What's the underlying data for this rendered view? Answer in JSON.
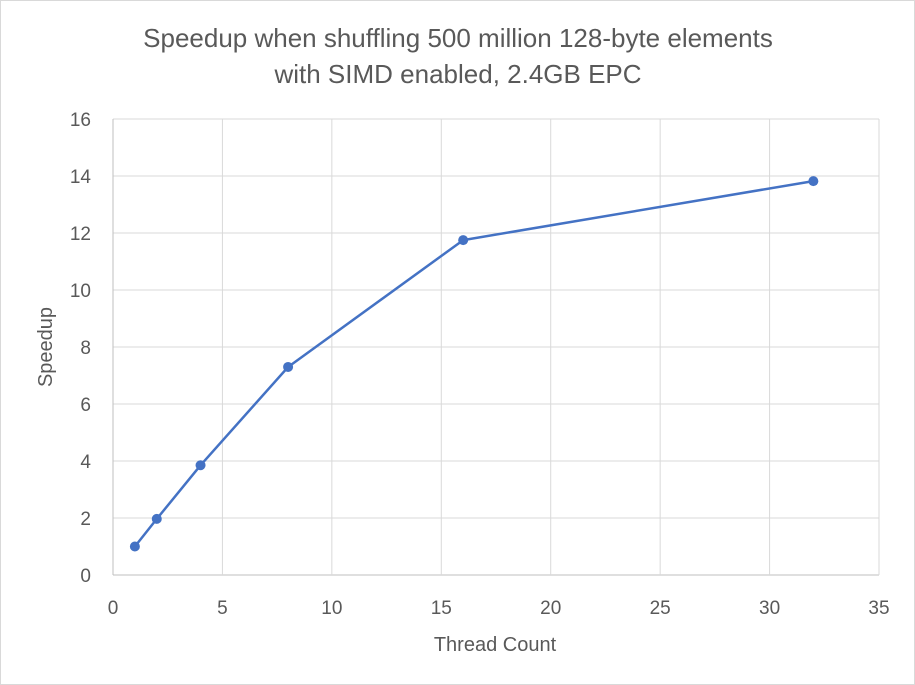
{
  "chart_data": {
    "type": "scatter",
    "title": [
      "Speedup when shuffling 500 million 128-byte elements",
      "with SIMD enabled, 2.4GB EPC"
    ],
    "xlabel": "Thread Count",
    "ylabel": "Speedup",
    "xlim": [
      0,
      35
    ],
    "ylim": [
      0,
      16
    ],
    "xticks": [
      0,
      5,
      10,
      15,
      20,
      25,
      30,
      35
    ],
    "yticks": [
      0,
      2,
      4,
      6,
      8,
      10,
      12,
      14,
      16
    ],
    "grid": true,
    "legend": "none",
    "series": [
      {
        "x": [
          1,
          2,
          4,
          8,
          16,
          32
        ],
        "y": [
          1.0,
          1.97,
          3.85,
          7.3,
          11.75,
          13.82
        ],
        "color": "#4472c4",
        "line": "straight",
        "markers": true
      }
    ]
  }
}
